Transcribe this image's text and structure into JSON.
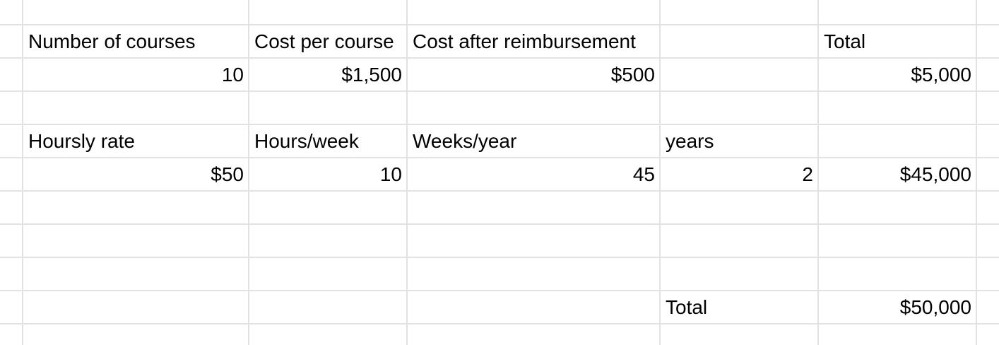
{
  "rows": [
    [
      "",
      "",
      "",
      "",
      "",
      "",
      ""
    ],
    [
      "",
      "Number of courses",
      "Cost per course",
      "Cost after reimbursement",
      "",
      "Total",
      ""
    ],
    [
      "",
      "10",
      "$1,500",
      "$500",
      "",
      "$5,000",
      ""
    ],
    [
      "",
      "",
      "",
      "",
      "",
      "",
      ""
    ],
    [
      "",
      "Hoursly rate",
      "Hours/week",
      "Weeks/year",
      "years",
      "",
      ""
    ],
    [
      "",
      "$50",
      "10",
      "45",
      "2",
      "$45,000",
      ""
    ],
    [
      "",
      "",
      "",
      "",
      "",
      "",
      ""
    ],
    [
      "",
      "",
      "",
      "",
      "",
      "",
      ""
    ],
    [
      "",
      "",
      "",
      "",
      "",
      "",
      ""
    ],
    [
      "",
      "",
      "",
      "",
      "Total",
      "$50,000",
      ""
    ],
    [
      "",
      "",
      "",
      "",
      "",
      "",
      ""
    ]
  ],
  "numeric_cells": [
    [
      2,
      1
    ],
    [
      2,
      2
    ],
    [
      2,
      3
    ],
    [
      2,
      5
    ],
    [
      5,
      1
    ],
    [
      5,
      2
    ],
    [
      5,
      3
    ],
    [
      5,
      4
    ],
    [
      5,
      5
    ],
    [
      9,
      5
    ]
  ]
}
